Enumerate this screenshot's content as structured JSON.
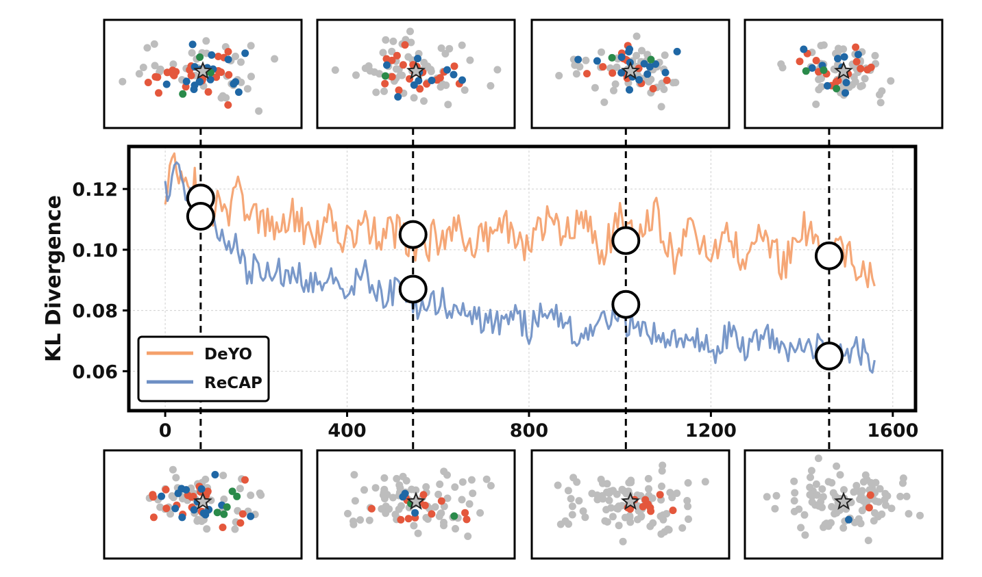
{
  "chart_data": {
    "type": "line",
    "title": "",
    "xlabel": "",
    "ylabel": "KL Divergence",
    "xlim": [
      -80,
      1650
    ],
    "ylim": [
      0.047,
      0.134
    ],
    "xticks": [
      0,
      400,
      800,
      1200,
      1600
    ],
    "yticks": [
      0.06,
      0.08,
      0.1,
      0.12
    ],
    "xtick_labels": [
      "0",
      "400",
      "800",
      "1200",
      "1600"
    ],
    "ytick_labels": [
      "0.06",
      "0.08",
      "0.10",
      "0.12"
    ],
    "grid": true,
    "legend": {
      "position": "bottom-left"
    },
    "colors": {
      "DeYO": "#f4a06b",
      "ReCAP": "#6e8fc4",
      "marker": "#ffffff",
      "scatter_gray": "#bdbdbd",
      "scatter_red": "#e4573c",
      "scatter_blue": "#1f67a5",
      "scatter_green": "#2a8a4a",
      "star": "#bdbdbd"
    },
    "series": [
      {
        "name": "DeYO",
        "x": [
          0,
          20,
          40,
          60,
          80,
          100,
          120,
          140,
          160,
          180,
          200,
          240,
          280,
          320,
          360,
          400,
          440,
          480,
          520,
          560,
          600,
          640,
          680,
          720,
          760,
          800,
          840,
          880,
          920,
          960,
          1000,
          1040,
          1080,
          1120,
          1160,
          1200,
          1240,
          1280,
          1320,
          1360,
          1400,
          1440,
          1480,
          1520,
          1560
        ],
        "values": [
          0.12,
          0.128,
          0.124,
          0.12,
          0.118,
          0.112,
          0.116,
          0.114,
          0.12,
          0.108,
          0.11,
          0.106,
          0.112,
          0.104,
          0.11,
          0.102,
          0.108,
          0.104,
          0.106,
          0.1,
          0.104,
          0.108,
          0.102,
          0.104,
          0.108,
          0.1,
          0.11,
          0.104,
          0.112,
          0.098,
          0.11,
          0.102,
          0.112,
          0.096,
          0.108,
          0.1,
          0.104,
          0.096,
          0.106,
          0.094,
          0.108,
          0.1,
          0.104,
          0.094,
          0.09
        ],
        "noise_amplitude": 0.006
      },
      {
        "name": "ReCAP",
        "x": [
          0,
          20,
          40,
          60,
          80,
          100,
          120,
          140,
          160,
          180,
          200,
          240,
          280,
          320,
          360,
          400,
          440,
          480,
          520,
          560,
          600,
          640,
          680,
          720,
          760,
          800,
          840,
          880,
          920,
          960,
          1000,
          1040,
          1080,
          1120,
          1160,
          1200,
          1240,
          1280,
          1320,
          1360,
          1400,
          1440,
          1480,
          1520,
          1560
        ],
        "values": [
          0.118,
          0.126,
          0.122,
          0.116,
          0.112,
          0.108,
          0.106,
          0.102,
          0.1,
          0.09,
          0.096,
          0.092,
          0.094,
          0.088,
          0.09,
          0.088,
          0.092,
          0.084,
          0.088,
          0.08,
          0.084,
          0.08,
          0.078,
          0.076,
          0.078,
          0.074,
          0.08,
          0.074,
          0.07,
          0.076,
          0.078,
          0.074,
          0.072,
          0.07,
          0.072,
          0.066,
          0.072,
          0.068,
          0.072,
          0.066,
          0.07,
          0.068,
          0.064,
          0.068,
          0.062
        ],
        "noise_amplitude": 0.005
      }
    ],
    "highlighted_points": [
      {
        "x": 78,
        "values": [
          0.117,
          0.111
        ]
      },
      {
        "x": 545,
        "values": [
          0.105,
          0.087
        ]
      },
      {
        "x": 1013,
        "values": [
          0.103,
          0.082
        ]
      },
      {
        "x": 1460,
        "values": [
          0.098,
          0.065
        ]
      }
    ],
    "inset_scatter_panels": [
      {
        "row": "top",
        "step": 78,
        "counts": {
          "gray": 38,
          "red": 25,
          "blue": 20,
          "green": 3
        }
      },
      {
        "row": "top",
        "step": 545,
        "counts": {
          "gray": 55,
          "red": 20,
          "blue": 10,
          "green": 1
        }
      },
      {
        "row": "top",
        "step": 1013,
        "counts": {
          "gray": 50,
          "red": 14,
          "blue": 16,
          "green": 2
        }
      },
      {
        "row": "top",
        "step": 1460,
        "counts": {
          "gray": 55,
          "red": 14,
          "blue": 10,
          "green": 3
        }
      },
      {
        "row": "bottom",
        "step": 78,
        "counts": {
          "gray": 55,
          "red": 20,
          "blue": 15,
          "green": 5
        }
      },
      {
        "row": "bottom",
        "step": 545,
        "counts": {
          "gray": 80,
          "red": 14,
          "blue": 3,
          "green": 2
        }
      },
      {
        "row": "bottom",
        "step": 1013,
        "counts": {
          "gray": 95,
          "red": 10,
          "blue": 0,
          "green": 0
        }
      },
      {
        "row": "bottom",
        "step": 1460,
        "counts": {
          "gray": 100,
          "red": 2,
          "blue": 1,
          "green": 0
        }
      }
    ]
  }
}
